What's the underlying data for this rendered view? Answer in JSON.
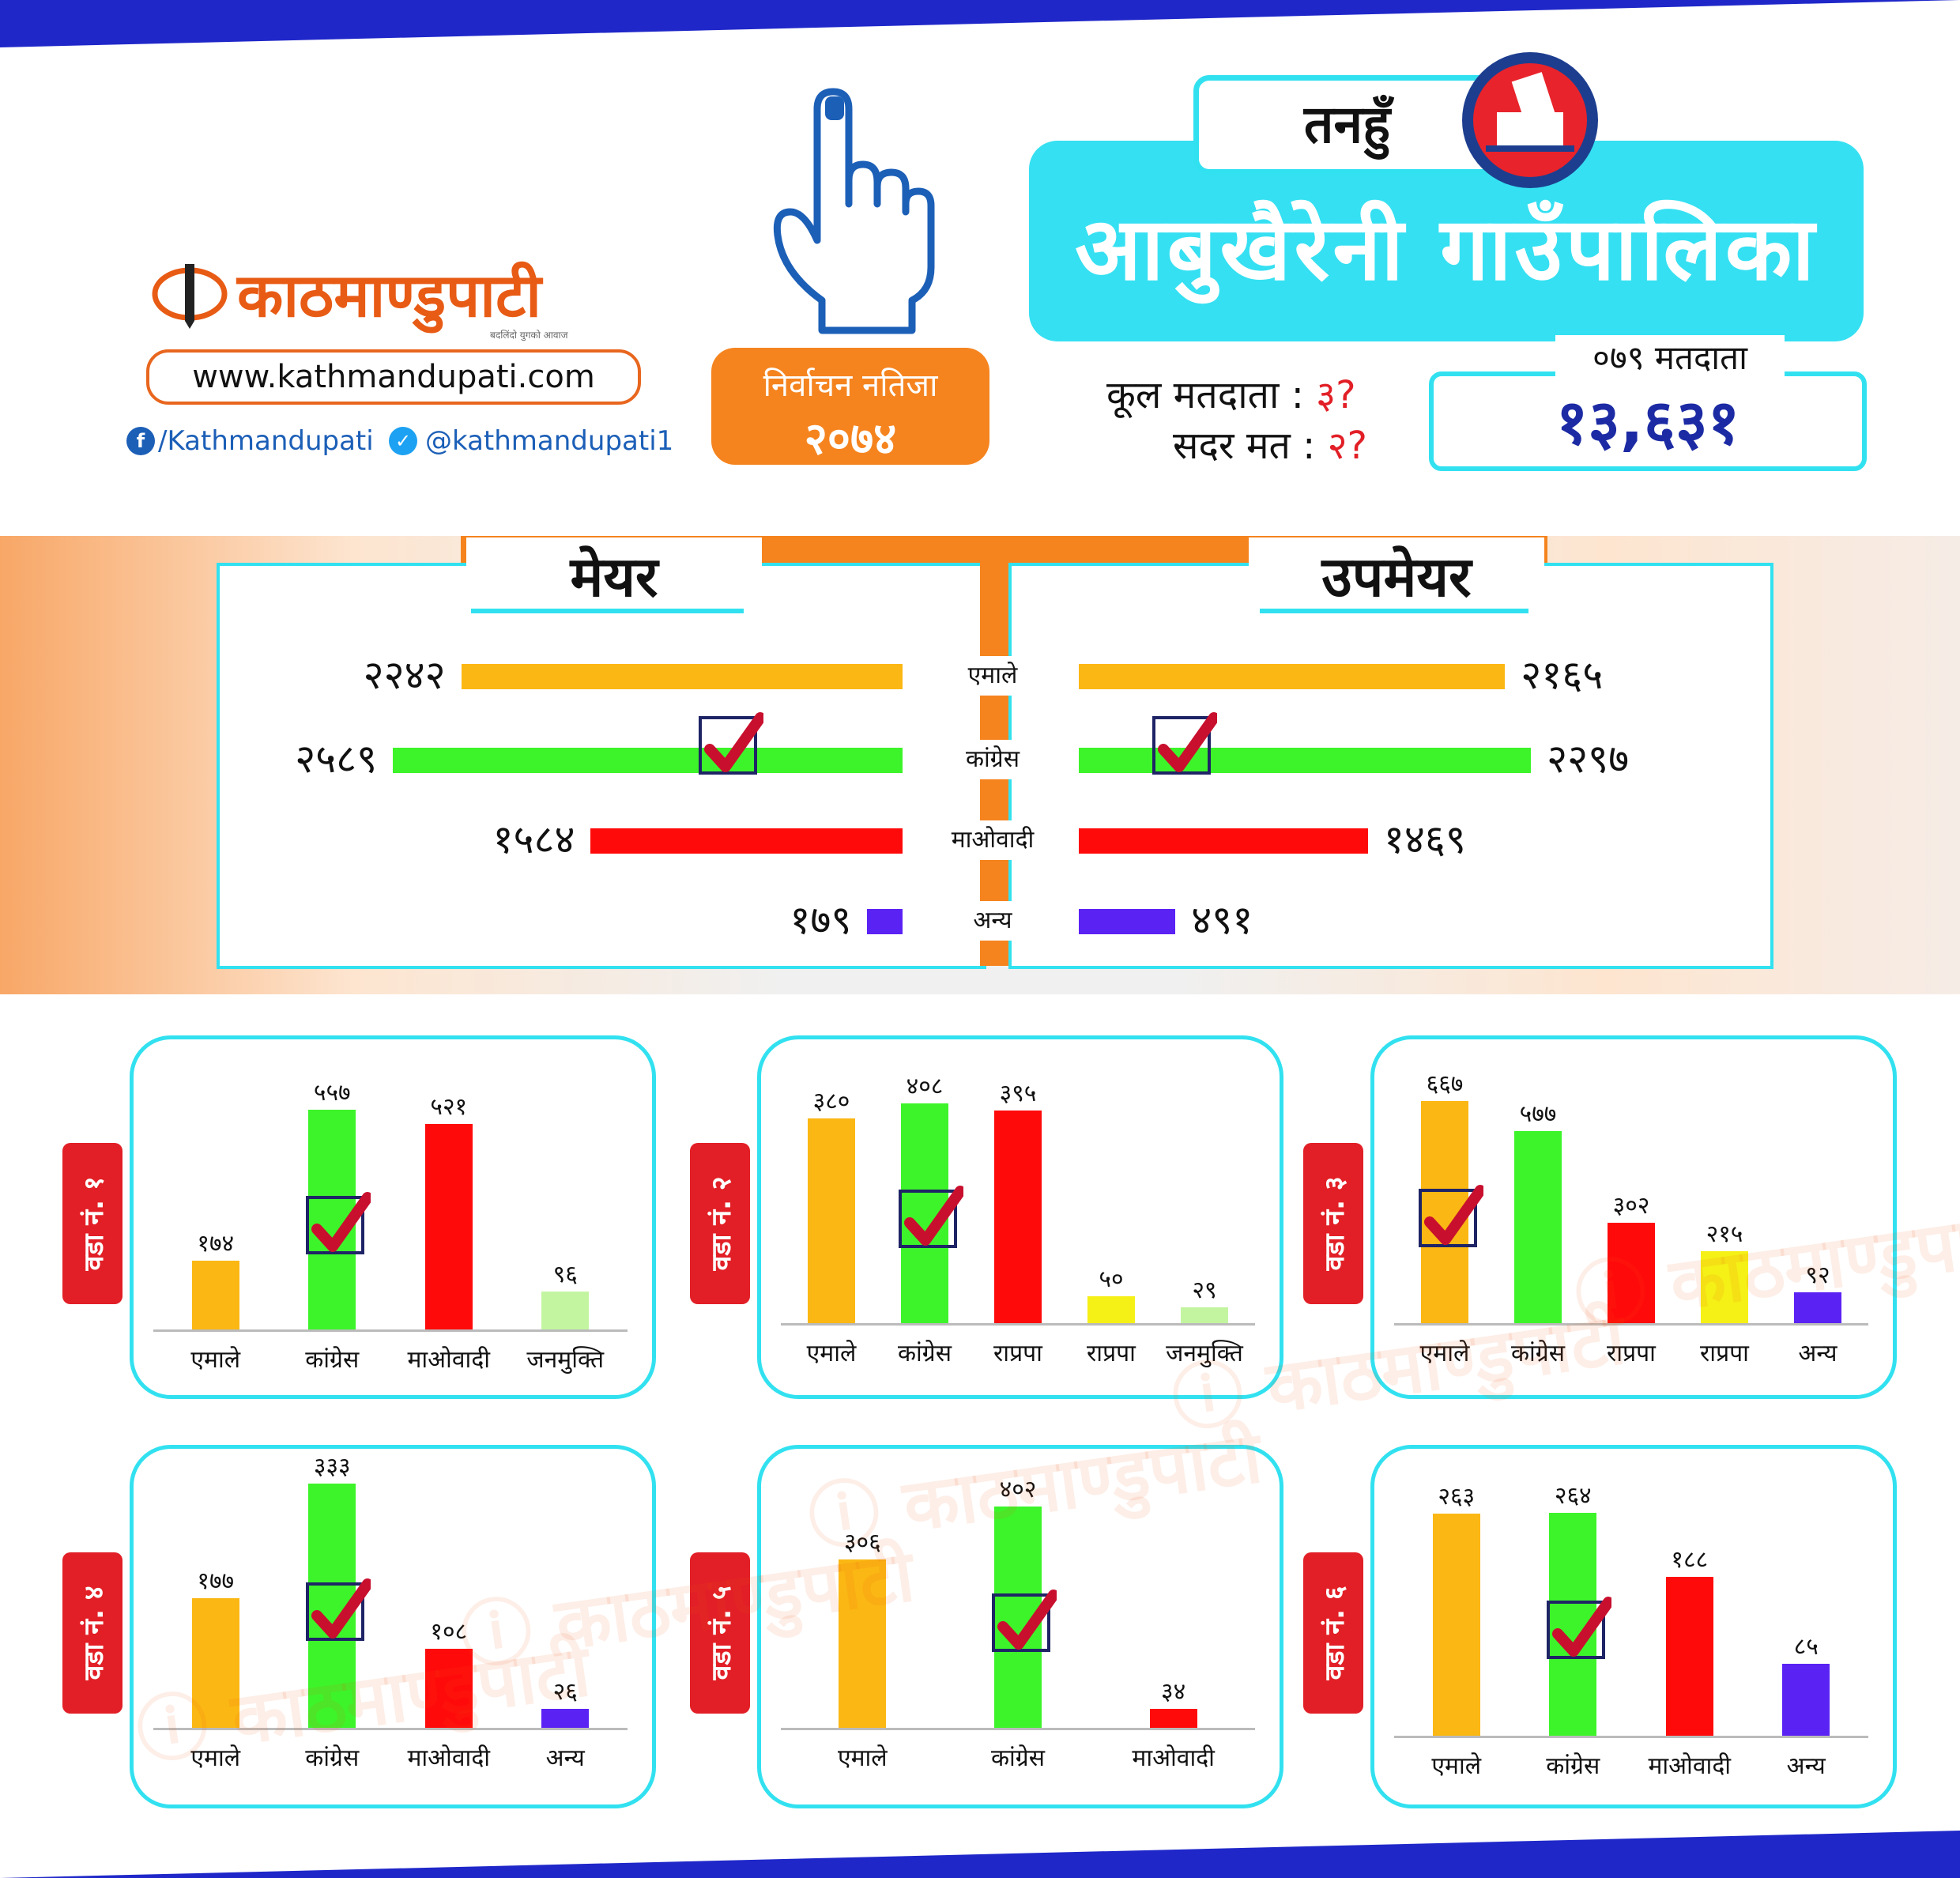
{
  "header": {
    "brand": "काठमाण्डुपाटी",
    "brand_tagline": "बदलिंदो युगको आवाज",
    "website": "www.kathmandupati.com",
    "facebook": "/Kathmandupati",
    "twitter": "@kathmandupati1",
    "result_line1": "निर्वाचन नतिजा",
    "result_line2": "२०७४",
    "district": "तनहुँ",
    "municipality": "आबुखैरेनी गाउँपालिका",
    "total_voters_label": "कूल मतदाता :",
    "total_voters_value": "३?",
    "valid_votes_label": "सदर मत :",
    "valid_votes_value": "२?",
    "voters_caption": "०७९ मतदाता",
    "voters_value": "१३,६३१"
  },
  "colors": {
    "emale": "#fbb713",
    "congress": "#3df42a",
    "maoist": "#ff0a0a",
    "other": "#5b22f4",
    "rpp": "#f5f016",
    "janamukti": "#c3f5a1",
    "accent_cyan": "#32e1f0",
    "accent_orange": "#f5841f"
  },
  "chart_data": [
    {
      "type": "bar",
      "orientation": "horizontal",
      "title": "मेयर",
      "categories": [
        "एमाले",
        "कांग्रेस",
        "माओवादी",
        "अन्य"
      ],
      "values": [
        2242,
        2589,
        1584,
        179
      ],
      "value_labels": [
        "२२४२",
        "२५८९",
        "१५८४",
        "१७९"
      ],
      "winner_index": 1
    },
    {
      "type": "bar",
      "orientation": "horizontal",
      "title": "उपमेयर",
      "categories": [
        "एमाले",
        "कांग्रेस",
        "माओवादी",
        "अन्य"
      ],
      "values": [
        2165,
        2297,
        1469,
        491
      ],
      "value_labels": [
        "२१६५",
        "२२९७",
        "१४६९",
        "४९१"
      ],
      "winner_index": 1
    },
    {
      "type": "bar",
      "title": "वडा नं. १",
      "categories": [
        "एमाले",
        "कांग्रेस",
        "माओवादी",
        "जनमुक्ति"
      ],
      "values": [
        174,
        557,
        521,
        96
      ],
      "value_labels": [
        "१७४",
        "५५७",
        "५२१",
        "९६"
      ],
      "colors": [
        "#fbb713",
        "#3df42a",
        "#ff0a0a",
        "#c3f5a1"
      ],
      "winner_index": 1
    },
    {
      "type": "bar",
      "title": "वडा नं. २",
      "categories": [
        "एमाले",
        "कांग्रेस",
        "राप्रपा",
        "राप्रपा",
        "जनमुक्ति"
      ],
      "values": [
        380,
        408,
        395,
        50,
        29
      ],
      "value_labels": [
        "३८०",
        "४०८",
        "३९५",
        "५०",
        "२९"
      ],
      "colors": [
        "#fbb713",
        "#3df42a",
        "#ff0a0a",
        "#f5f016",
        "#c3f5a1"
      ],
      "winner_index": 1
    },
    {
      "type": "bar",
      "title": "वडा नं. ३",
      "categories": [
        "एमाले",
        "कांग्रेस",
        "राप्रपा",
        "राप्रपा",
        "अन्य"
      ],
      "values": [
        667,
        577,
        302,
        215,
        92
      ],
      "value_labels": [
        "६६७",
        "५७७",
        "३०२",
        "२१५",
        "९२"
      ],
      "colors": [
        "#fbb713",
        "#3df42a",
        "#ff0a0a",
        "#f5f016",
        "#5b22f4"
      ],
      "winner_index": 0
    },
    {
      "type": "bar",
      "title": "वडा नं. ४",
      "categories": [
        "एमाले",
        "कांग्रेस",
        "माओवादी",
        "अन्य"
      ],
      "values": [
        177,
        333,
        108,
        26
      ],
      "value_labels": [
        "१७७",
        "३३३",
        "१०८",
        "२६"
      ],
      "colors": [
        "#fbb713",
        "#3df42a",
        "#ff0a0a",
        "#5b22f4"
      ],
      "winner_index": 1
    },
    {
      "type": "bar",
      "title": "वडा नं. ५",
      "categories": [
        "एमाले",
        "कांग्रेस",
        "माओवादी"
      ],
      "values": [
        306,
        402,
        34
      ],
      "value_labels": [
        "३०६",
        "४०२",
        "३४"
      ],
      "colors": [
        "#fbb713",
        "#3df42a",
        "#ff0a0a"
      ],
      "winner_index": 1
    },
    {
      "type": "bar",
      "title": "वडा नं. ६",
      "categories": [
        "एमाले",
        "कांग्रेस",
        "माओवादी",
        "अन्य"
      ],
      "values": [
        263,
        264,
        188,
        85
      ],
      "value_labels": [
        "२६३",
        "२६४",
        "१८८",
        "८५"
      ],
      "colors": [
        "#fbb713",
        "#3df42a",
        "#ff0a0a",
        "#5b22f4"
      ],
      "winner_index": 1
    }
  ]
}
